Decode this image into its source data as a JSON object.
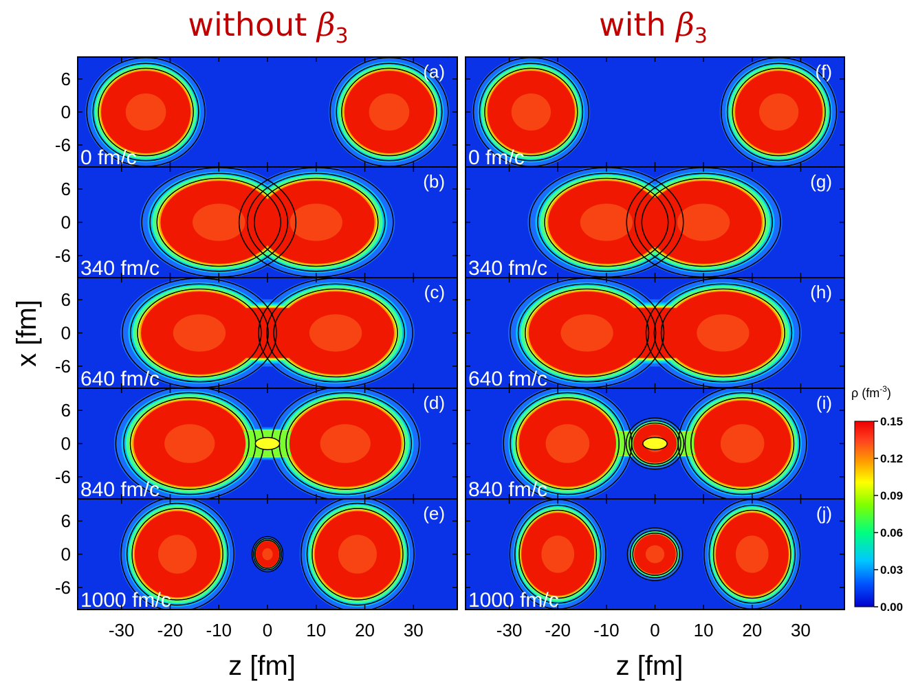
{
  "chart_data": {
    "type": "heatmap",
    "columns": [
      {
        "title_text": "without ",
        "title_symbol": "β",
        "title_sub": "3"
      },
      {
        "title_text": "with ",
        "title_symbol": "β",
        "title_sub": "3"
      }
    ],
    "xlabel": "z [fm]",
    "ylabel": "x [fm]",
    "xlim": [
      -39,
      39
    ],
    "ylim": [
      -10,
      10
    ],
    "xticks": [
      -30,
      -20,
      -10,
      0,
      10,
      20,
      30
    ],
    "xtick_labels": [
      "-30",
      "-20",
      "-10",
      "0",
      "10",
      "20",
      "30"
    ],
    "yticks": [
      6,
      0,
      -6
    ],
    "ytick_labels": [
      "6",
      "0",
      "-6"
    ],
    "colorbar": {
      "title": "ρ (fm",
      "title_sup": "-3",
      "title_end": ")",
      "ticks": [
        0.15,
        0.12,
        0.09,
        0.06,
        0.03,
        0.0
      ],
      "tick_labels": [
        "0.15",
        "0.12",
        "0.09",
        "0.06",
        "0.03",
        "0.00"
      ],
      "range": [
        0.0,
        0.15
      ],
      "colors": [
        "#0000cc",
        "#0050ff",
        "#00c8ff",
        "#00ff80",
        "#80ff00",
        "#ffff00",
        "#ffa000",
        "#ff4020",
        "#ee0000"
      ]
    },
    "panels": [
      {
        "tag": "(a)",
        "time": "0 fm/c",
        "col": 0,
        "row": 0
      },
      {
        "tag": "(b)",
        "time": "340 fm/c",
        "col": 0,
        "row": 1
      },
      {
        "tag": "(c)",
        "time": "640 fm/c",
        "col": 0,
        "row": 2
      },
      {
        "tag": "(d)",
        "time": "840 fm/c",
        "col": 0,
        "row": 3
      },
      {
        "tag": "(e)",
        "time": "1000 fm/c",
        "col": 0,
        "row": 4
      },
      {
        "tag": "(f)",
        "time": "0 fm/c",
        "col": 1,
        "row": 0
      },
      {
        "tag": "(g)",
        "time": "340 fm/c",
        "col": 1,
        "row": 1
      },
      {
        "tag": "(h)",
        "time": "640 fm/c",
        "col": 1,
        "row": 2
      },
      {
        "tag": "(i)",
        "time": "840 fm/c",
        "col": 1,
        "row": 3
      },
      {
        "tag": "(j)",
        "time": "1000 fm/c",
        "col": 1,
        "row": 4
      }
    ],
    "background_color": "#0a32e6"
  }
}
